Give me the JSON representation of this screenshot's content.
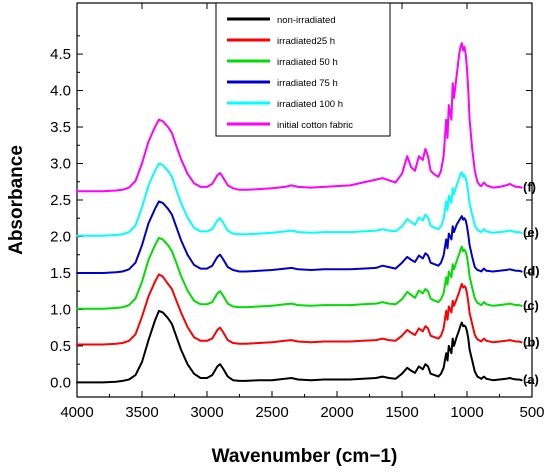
{
  "chart_data": {
    "type": "line",
    "title": "",
    "xlabel": "Wavenumber (cm−1)",
    "ylabel": "Absorbance",
    "xlim": [
      4000,
      500
    ],
    "ylim": [
      -0.2,
      5.2
    ],
    "x_reversed": true,
    "grid": false,
    "legend_position": "top-center",
    "x_ticks": [
      "4000",
      "3500",
      "3000",
      "2500",
      "2000",
      "1500",
      "1000",
      "500"
    ],
    "x_tick_values": [
      4000,
      3500,
      3000,
      2500,
      2000,
      1500,
      1000,
      500
    ],
    "y_ticks": [
      "0.0",
      "0.5",
      "1.0",
      "1.5",
      "2.0",
      "2.5",
      "3.0",
      "3.5",
      "4.0",
      "4.5"
    ],
    "y_tick_values": [
      0.0,
      0.5,
      1.0,
      1.5,
      2.0,
      2.5,
      3.0,
      3.5,
      4.0,
      4.5
    ],
    "x": [
      4000,
      3900,
      3800,
      3700,
      3650,
      3600,
      3550,
      3500,
      3450,
      3400,
      3370,
      3340,
      3320,
      3300,
      3270,
      3240,
      3200,
      3150,
      3100,
      3050,
      3000,
      2960,
      2940,
      2920,
      2900,
      2880,
      2860,
      2840,
      2800,
      2750,
      2700,
      2600,
      2500,
      2400,
      2350,
      2300,
      2200,
      2100,
      2000,
      1900,
      1800,
      1700,
      1650,
      1600,
      1550,
      1500,
      1460,
      1430,
      1400,
      1370,
      1340,
      1320,
      1300,
      1280,
      1250,
      1220,
      1200,
      1180,
      1160,
      1150,
      1140,
      1120,
      1110,
      1100,
      1080,
      1060,
      1050,
      1040,
      1030,
      1020,
      1010,
      1000,
      990,
      980,
      960,
      940,
      920,
      900,
      890,
      870,
      850,
      800,
      750,
      700,
      670,
      650,
      620,
      600,
      580
    ],
    "series": [
      {
        "name": "non-irradiated",
        "color": "#000000",
        "curve_label": "(a)",
        "values": [
          0.0,
          0.0,
          0.0,
          0.01,
          0.02,
          0.04,
          0.1,
          0.28,
          0.58,
          0.85,
          0.98,
          0.96,
          0.92,
          0.88,
          0.8,
          0.65,
          0.45,
          0.25,
          0.12,
          0.06,
          0.06,
          0.1,
          0.16,
          0.22,
          0.25,
          0.2,
          0.14,
          0.08,
          0.03,
          0.02,
          0.02,
          0.03,
          0.03,
          0.05,
          0.06,
          0.04,
          0.03,
          0.04,
          0.04,
          0.04,
          0.05,
          0.06,
          0.08,
          0.06,
          0.05,
          0.12,
          0.2,
          0.16,
          0.13,
          0.22,
          0.18,
          0.25,
          0.22,
          0.12,
          0.1,
          0.08,
          0.12,
          0.2,
          0.4,
          0.3,
          0.5,
          0.4,
          0.6,
          0.5,
          0.62,
          0.72,
          0.78,
          0.82,
          0.77,
          0.78,
          0.76,
          0.7,
          0.6,
          0.45,
          0.3,
          0.15,
          0.08,
          0.06,
          0.05,
          0.08,
          0.05,
          0.03,
          0.04,
          0.05,
          0.06,
          0.05,
          0.04,
          0.04,
          0.03
        ]
      },
      {
        "name": "irradiated25 h",
        "color": "#ff0000",
        "curve_label": "(b)",
        "values": [
          0.52,
          0.52,
          0.52,
          0.53,
          0.54,
          0.57,
          0.66,
          0.9,
          1.18,
          1.38,
          1.48,
          1.45,
          1.4,
          1.35,
          1.28,
          1.14,
          0.96,
          0.76,
          0.62,
          0.57,
          0.57,
          0.6,
          0.66,
          0.72,
          0.75,
          0.7,
          0.64,
          0.58,
          0.54,
          0.53,
          0.53,
          0.54,
          0.55,
          0.57,
          0.58,
          0.56,
          0.55,
          0.56,
          0.56,
          0.56,
          0.57,
          0.58,
          0.6,
          0.58,
          0.57,
          0.64,
          0.72,
          0.68,
          0.65,
          0.74,
          0.7,
          0.77,
          0.74,
          0.64,
          0.62,
          0.6,
          0.64,
          0.74,
          0.98,
          0.86,
          1.04,
          0.96,
          1.12,
          1.05,
          1.14,
          1.24,
          1.3,
          1.35,
          1.3,
          1.32,
          1.3,
          1.22,
          1.1,
          0.95,
          0.8,
          0.65,
          0.59,
          0.57,
          0.56,
          0.6,
          0.57,
          0.55,
          0.56,
          0.57,
          0.58,
          0.57,
          0.56,
          0.56,
          0.55
        ]
      },
      {
        "name": "irradiated 50 h",
        "color": "#00dd00",
        "curve_label": "(c)",
        "values": [
          1.01,
          1.01,
          1.01,
          1.02,
          1.03,
          1.06,
          1.15,
          1.38,
          1.68,
          1.88,
          1.98,
          1.96,
          1.92,
          1.88,
          1.8,
          1.66,
          1.46,
          1.26,
          1.12,
          1.07,
          1.07,
          1.1,
          1.16,
          1.22,
          1.25,
          1.2,
          1.14,
          1.08,
          1.04,
          1.03,
          1.03,
          1.04,
          1.05,
          1.07,
          1.08,
          1.06,
          1.05,
          1.06,
          1.06,
          1.06,
          1.07,
          1.08,
          1.1,
          1.08,
          1.07,
          1.14,
          1.24,
          1.2,
          1.16,
          1.26,
          1.22,
          1.28,
          1.25,
          1.15,
          1.12,
          1.1,
          1.14,
          1.22,
          1.44,
          1.34,
          1.52,
          1.44,
          1.62,
          1.55,
          1.66,
          1.76,
          1.82,
          1.86,
          1.8,
          1.82,
          1.79,
          1.72,
          1.6,
          1.45,
          1.3,
          1.15,
          1.09,
          1.07,
          1.06,
          1.1,
          1.07,
          1.05,
          1.06,
          1.07,
          1.08,
          1.07,
          1.06,
          1.06,
          1.05
        ]
      },
      {
        "name": "irradiated  75 h",
        "color": "#0000cc",
        "curve_label": "(d)",
        "values": [
          1.5,
          1.5,
          1.5,
          1.51,
          1.52,
          1.55,
          1.64,
          1.88,
          2.18,
          2.38,
          2.48,
          2.46,
          2.42,
          2.38,
          2.3,
          2.15,
          1.95,
          1.75,
          1.61,
          1.56,
          1.56,
          1.6,
          1.66,
          1.72,
          1.75,
          1.7,
          1.64,
          1.58,
          1.54,
          1.52,
          1.52,
          1.53,
          1.54,
          1.56,
          1.57,
          1.55,
          1.54,
          1.55,
          1.55,
          1.55,
          1.56,
          1.57,
          1.6,
          1.58,
          1.56,
          1.64,
          1.72,
          1.68,
          1.65,
          1.74,
          1.7,
          1.77,
          1.74,
          1.64,
          1.62,
          1.6,
          1.64,
          1.74,
          1.96,
          1.84,
          2.04,
          1.96,
          2.14,
          2.06,
          2.16,
          2.22,
          2.25,
          2.28,
          2.23,
          2.25,
          2.22,
          2.14,
          2.02,
          1.88,
          1.72,
          1.58,
          1.54,
          1.53,
          1.52,
          1.56,
          1.53,
          1.52,
          1.53,
          1.54,
          1.55,
          1.54,
          1.53,
          1.53,
          1.52
        ]
      },
      {
        "name": "irradiated 100 h",
        "color": "#00ffff",
        "curve_label": "(e)",
        "values": [
          2.01,
          2.01,
          2.01,
          2.02,
          2.03,
          2.06,
          2.15,
          2.4,
          2.7,
          2.9,
          3.0,
          2.98,
          2.94,
          2.9,
          2.82,
          2.66,
          2.46,
          2.26,
          2.12,
          2.07,
          2.07,
          2.1,
          2.16,
          2.22,
          2.25,
          2.2,
          2.14,
          2.08,
          2.04,
          2.03,
          2.03,
          2.04,
          2.05,
          2.07,
          2.08,
          2.06,
          2.05,
          2.06,
          2.06,
          2.06,
          2.07,
          2.08,
          2.1,
          2.08,
          2.07,
          2.14,
          2.24,
          2.2,
          2.16,
          2.26,
          2.22,
          2.3,
          2.26,
          2.15,
          2.12,
          2.1,
          2.14,
          2.24,
          2.48,
          2.36,
          2.56,
          2.46,
          2.66,
          2.58,
          2.7,
          2.8,
          2.86,
          2.88,
          2.82,
          2.84,
          2.8,
          2.72,
          2.6,
          2.45,
          2.3,
          2.15,
          2.09,
          2.07,
          2.06,
          2.1,
          2.07,
          2.05,
          2.06,
          2.07,
          2.08,
          2.07,
          2.06,
          2.06,
          2.05
        ]
      },
      {
        "name": "initial cotton fabric",
        "color": "#ff00ff",
        "curve_label": "(f)",
        "values": [
          2.62,
          2.62,
          2.62,
          2.63,
          2.64,
          2.67,
          2.76,
          3.0,
          3.3,
          3.5,
          3.6,
          3.58,
          3.54,
          3.5,
          3.42,
          3.26,
          3.06,
          2.86,
          2.73,
          2.68,
          2.68,
          2.72,
          2.78,
          2.84,
          2.87,
          2.82,
          2.76,
          2.7,
          2.66,
          2.64,
          2.64,
          2.65,
          2.66,
          2.68,
          2.7,
          2.68,
          2.67,
          2.68,
          2.69,
          2.7,
          2.74,
          2.78,
          2.8,
          2.77,
          2.74,
          2.86,
          3.1,
          2.95,
          2.9,
          3.1,
          3.05,
          3.2,
          3.1,
          2.9,
          2.85,
          2.82,
          2.9,
          3.1,
          3.6,
          3.35,
          3.8,
          3.6,
          4.1,
          3.9,
          4.2,
          4.5,
          4.6,
          4.65,
          4.55,
          4.6,
          4.5,
          4.3,
          4.0,
          3.6,
          3.2,
          2.9,
          2.75,
          2.7,
          2.69,
          2.74,
          2.7,
          2.67,
          2.68,
          2.7,
          2.72,
          2.7,
          2.68,
          2.68,
          2.67
        ]
      }
    ]
  }
}
